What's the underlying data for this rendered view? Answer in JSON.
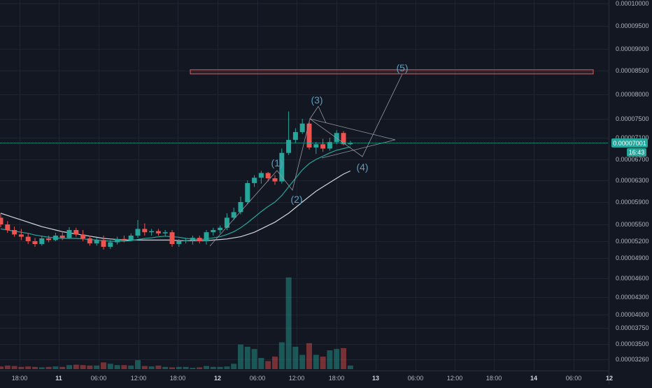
{
  "chart_data": {
    "type": "candlestick",
    "pair": "",
    "title": "",
    "grid": true,
    "y_ticks": [
      "0.00010000",
      "0.00009500",
      "0.00009000",
      "0.00008500",
      "0.00008000",
      "0.00007500",
      "0.00007100",
      "0.00006700",
      "0.00006300",
      "0.00005900",
      "0.00005500",
      "0.00005200",
      "0.00004900",
      "0.00004600",
      "0.00004300",
      "0.00004000",
      "0.00003750",
      "0.00003500",
      "0.00003260"
    ],
    "x_ticks": [
      {
        "label": "18:00",
        "bold": false
      },
      {
        "label": "11",
        "bold": true
      },
      {
        "label": "06:00",
        "bold": false
      },
      {
        "label": "12:00",
        "bold": false
      },
      {
        "label": "18:00",
        "bold": false
      },
      {
        "label": "12",
        "bold": true
      },
      {
        "label": "06:00",
        "bold": false
      },
      {
        "label": "12:00",
        "bold": false
      },
      {
        "label": "18:00",
        "bold": false
      },
      {
        "label": "13",
        "bold": true
      },
      {
        "label": "06:00",
        "bold": false
      },
      {
        "label": "12:00",
        "bold": false
      },
      {
        "label": "18:00",
        "bold": false
      },
      {
        "label": "14",
        "bold": true
      },
      {
        "label": "06:00",
        "bold": false
      },
      {
        "label": "12",
        "bold": true
      }
    ],
    "last_price": {
      "value": "0.00007001",
      "countdown": "16:43"
    },
    "candles": [
      {
        "o": 5.62,
        "h": 5.7,
        "l": 5.45,
        "c": 5.5
      },
      {
        "o": 5.5,
        "h": 5.56,
        "l": 5.35,
        "c": 5.4
      },
      {
        "o": 5.4,
        "h": 5.46,
        "l": 5.28,
        "c": 5.32
      },
      {
        "o": 5.32,
        "h": 5.42,
        "l": 5.22,
        "c": 5.28
      },
      {
        "o": 5.28,
        "h": 5.34,
        "l": 5.15,
        "c": 5.2
      },
      {
        "o": 5.2,
        "h": 5.26,
        "l": 5.1,
        "c": 5.15
      },
      {
        "o": 5.15,
        "h": 5.3,
        "l": 5.12,
        "c": 5.25
      },
      {
        "o": 5.25,
        "h": 5.3,
        "l": 5.18,
        "c": 5.22
      },
      {
        "o": 5.22,
        "h": 5.35,
        "l": 5.2,
        "c": 5.3
      },
      {
        "o": 5.3,
        "h": 5.38,
        "l": 5.22,
        "c": 5.26
      },
      {
        "o": 5.26,
        "h": 5.45,
        "l": 5.24,
        "c": 5.4
      },
      {
        "o": 5.4,
        "h": 5.44,
        "l": 5.28,
        "c": 5.32
      },
      {
        "o": 5.32,
        "h": 5.4,
        "l": 5.2,
        "c": 5.25
      },
      {
        "o": 5.25,
        "h": 5.3,
        "l": 5.12,
        "c": 5.16
      },
      {
        "o": 5.16,
        "h": 5.26,
        "l": 5.12,
        "c": 5.22
      },
      {
        "o": 5.22,
        "h": 5.3,
        "l": 5.05,
        "c": 5.1
      },
      {
        "o": 5.1,
        "h": 5.22,
        "l": 5.06,
        "c": 5.18
      },
      {
        "o": 5.18,
        "h": 5.28,
        "l": 5.14,
        "c": 5.24
      },
      {
        "o": 5.24,
        "h": 5.3,
        "l": 5.18,
        "c": 5.22
      },
      {
        "o": 5.22,
        "h": 5.34,
        "l": 5.2,
        "c": 5.3
      },
      {
        "o": 5.3,
        "h": 5.58,
        "l": 5.26,
        "c": 5.42
      },
      {
        "o": 5.42,
        "h": 5.52,
        "l": 5.3,
        "c": 5.36
      },
      {
        "o": 5.36,
        "h": 5.42,
        "l": 5.3,
        "c": 5.38
      },
      {
        "o": 5.38,
        "h": 5.42,
        "l": 5.3,
        "c": 5.34
      },
      {
        "o": 5.34,
        "h": 5.4,
        "l": 5.28,
        "c": 5.36
      },
      {
        "o": 5.36,
        "h": 5.4,
        "l": 5.1,
        "c": 5.15
      },
      {
        "o": 5.15,
        "h": 5.24,
        "l": 5.1,
        "c": 5.2
      },
      {
        "o": 5.2,
        "h": 5.26,
        "l": 5.16,
        "c": 5.22
      },
      {
        "o": 5.22,
        "h": 5.3,
        "l": 5.14,
        "c": 5.26
      },
      {
        "o": 5.26,
        "h": 5.3,
        "l": 5.16,
        "c": 5.2
      },
      {
        "o": 5.2,
        "h": 5.4,
        "l": 5.14,
        "c": 5.36
      },
      {
        "o": 5.36,
        "h": 5.44,
        "l": 5.3,
        "c": 5.4
      },
      {
        "o": 5.4,
        "h": 5.48,
        "l": 5.34,
        "c": 5.44
      },
      {
        "o": 5.44,
        "h": 5.7,
        "l": 5.4,
        "c": 5.62
      },
      {
        "o": 5.62,
        "h": 5.8,
        "l": 5.58,
        "c": 5.72
      },
      {
        "o": 5.72,
        "h": 6.0,
        "l": 5.68,
        "c": 5.9
      },
      {
        "o": 5.9,
        "h": 6.3,
        "l": 5.86,
        "c": 6.25
      },
      {
        "o": 6.25,
        "h": 6.4,
        "l": 6.18,
        "c": 6.35
      },
      {
        "o": 6.35,
        "h": 6.48,
        "l": 6.24,
        "c": 6.44
      },
      {
        "o": 6.44,
        "h": 6.46,
        "l": 6.28,
        "c": 6.34
      },
      {
        "o": 6.34,
        "h": 6.4,
        "l": 6.22,
        "c": 6.28
      },
      {
        "o": 6.28,
        "h": 6.9,
        "l": 6.24,
        "c": 6.82
      },
      {
        "o": 6.82,
        "h": 7.65,
        "l": 6.78,
        "c": 7.06
      },
      {
        "o": 7.06,
        "h": 7.3,
        "l": 7.0,
        "c": 7.22
      },
      {
        "o": 7.22,
        "h": 7.5,
        "l": 7.18,
        "c": 7.4
      },
      {
        "o": 7.4,
        "h": 7.44,
        "l": 6.88,
        "c": 6.92
      },
      {
        "o": 6.92,
        "h": 7.02,
        "l": 6.8,
        "c": 6.98
      },
      {
        "o": 6.98,
        "h": 7.08,
        "l": 6.84,
        "c": 6.9
      },
      {
        "o": 6.9,
        "h": 7.1,
        "l": 6.86,
        "c": 7.02
      },
      {
        "o": 7.02,
        "h": 7.26,
        "l": 6.98,
        "c": 7.2
      },
      {
        "o": 7.2,
        "h": 7.24,
        "l": 6.96,
        "c": 6.98
      },
      {
        "o": 6.98,
        "h": 7.04,
        "l": 6.96,
        "c": 7.0
      }
    ],
    "volume": [
      6,
      8,
      7,
      5,
      6,
      5,
      4,
      5,
      6,
      5,
      9,
      10,
      9,
      8,
      8,
      15,
      12,
      9,
      9,
      8,
      20,
      7,
      6,
      8,
      5,
      4,
      5,
      5,
      3,
      4,
      7,
      5,
      5,
      6,
      12,
      55,
      50,
      45,
      25,
      18,
      28,
      60,
      205,
      50,
      32,
      58,
      32,
      28,
      42,
      45,
      47,
      8
    ],
    "sma_fast": [
      5.42,
      5.4,
      5.38,
      5.36,
      5.34,
      5.31,
      5.29,
      5.27,
      5.26,
      5.25,
      5.25,
      5.25,
      5.24,
      5.23,
      5.22,
      5.21,
      5.2,
      5.2,
      5.2,
      5.21,
      5.23,
      5.25,
      5.26,
      5.28,
      5.29,
      5.28,
      5.27,
      5.25,
      5.24,
      5.23,
      5.24,
      5.26,
      5.28,
      5.32,
      5.37,
      5.44,
      5.53,
      5.63,
      5.73,
      5.82,
      5.9,
      6.02,
      6.18,
      6.34,
      6.5,
      6.62,
      6.7,
      6.76,
      6.82,
      6.87,
      6.9,
      6.93
    ],
    "sma_slow": [
      5.7,
      5.66,
      5.62,
      5.58,
      5.54,
      5.5,
      5.46,
      5.43,
      5.4,
      5.37,
      5.35,
      5.33,
      5.31,
      5.29,
      5.27,
      5.25,
      5.24,
      5.23,
      5.22,
      5.22,
      5.22,
      5.22,
      5.22,
      5.22,
      5.22,
      5.22,
      5.21,
      5.21,
      5.21,
      5.21,
      5.21,
      5.22,
      5.23,
      5.24,
      5.26,
      5.28,
      5.32,
      5.36,
      5.42,
      5.48,
      5.54,
      5.62,
      5.7,
      5.8,
      5.9,
      6.0,
      6.1,
      6.18,
      6.26,
      6.34,
      6.42,
      6.48
    ],
    "wave_labels": [
      "(1)",
      "(2)",
      "(3)",
      "(4)",
      "(5)"
    ],
    "target_zone": {
      "low": 8.43,
      "high": 8.52
    },
    "colors": {
      "background": "#131722",
      "grid": "#1f2433",
      "up": "#26a69a",
      "down": "#ef5350",
      "sma_fast": "#26a69a",
      "sma_slow": "#d1d4dc",
      "lines": "#9598a1",
      "zone": "#ef5350",
      "price_tag": "#26a69a"
    }
  }
}
